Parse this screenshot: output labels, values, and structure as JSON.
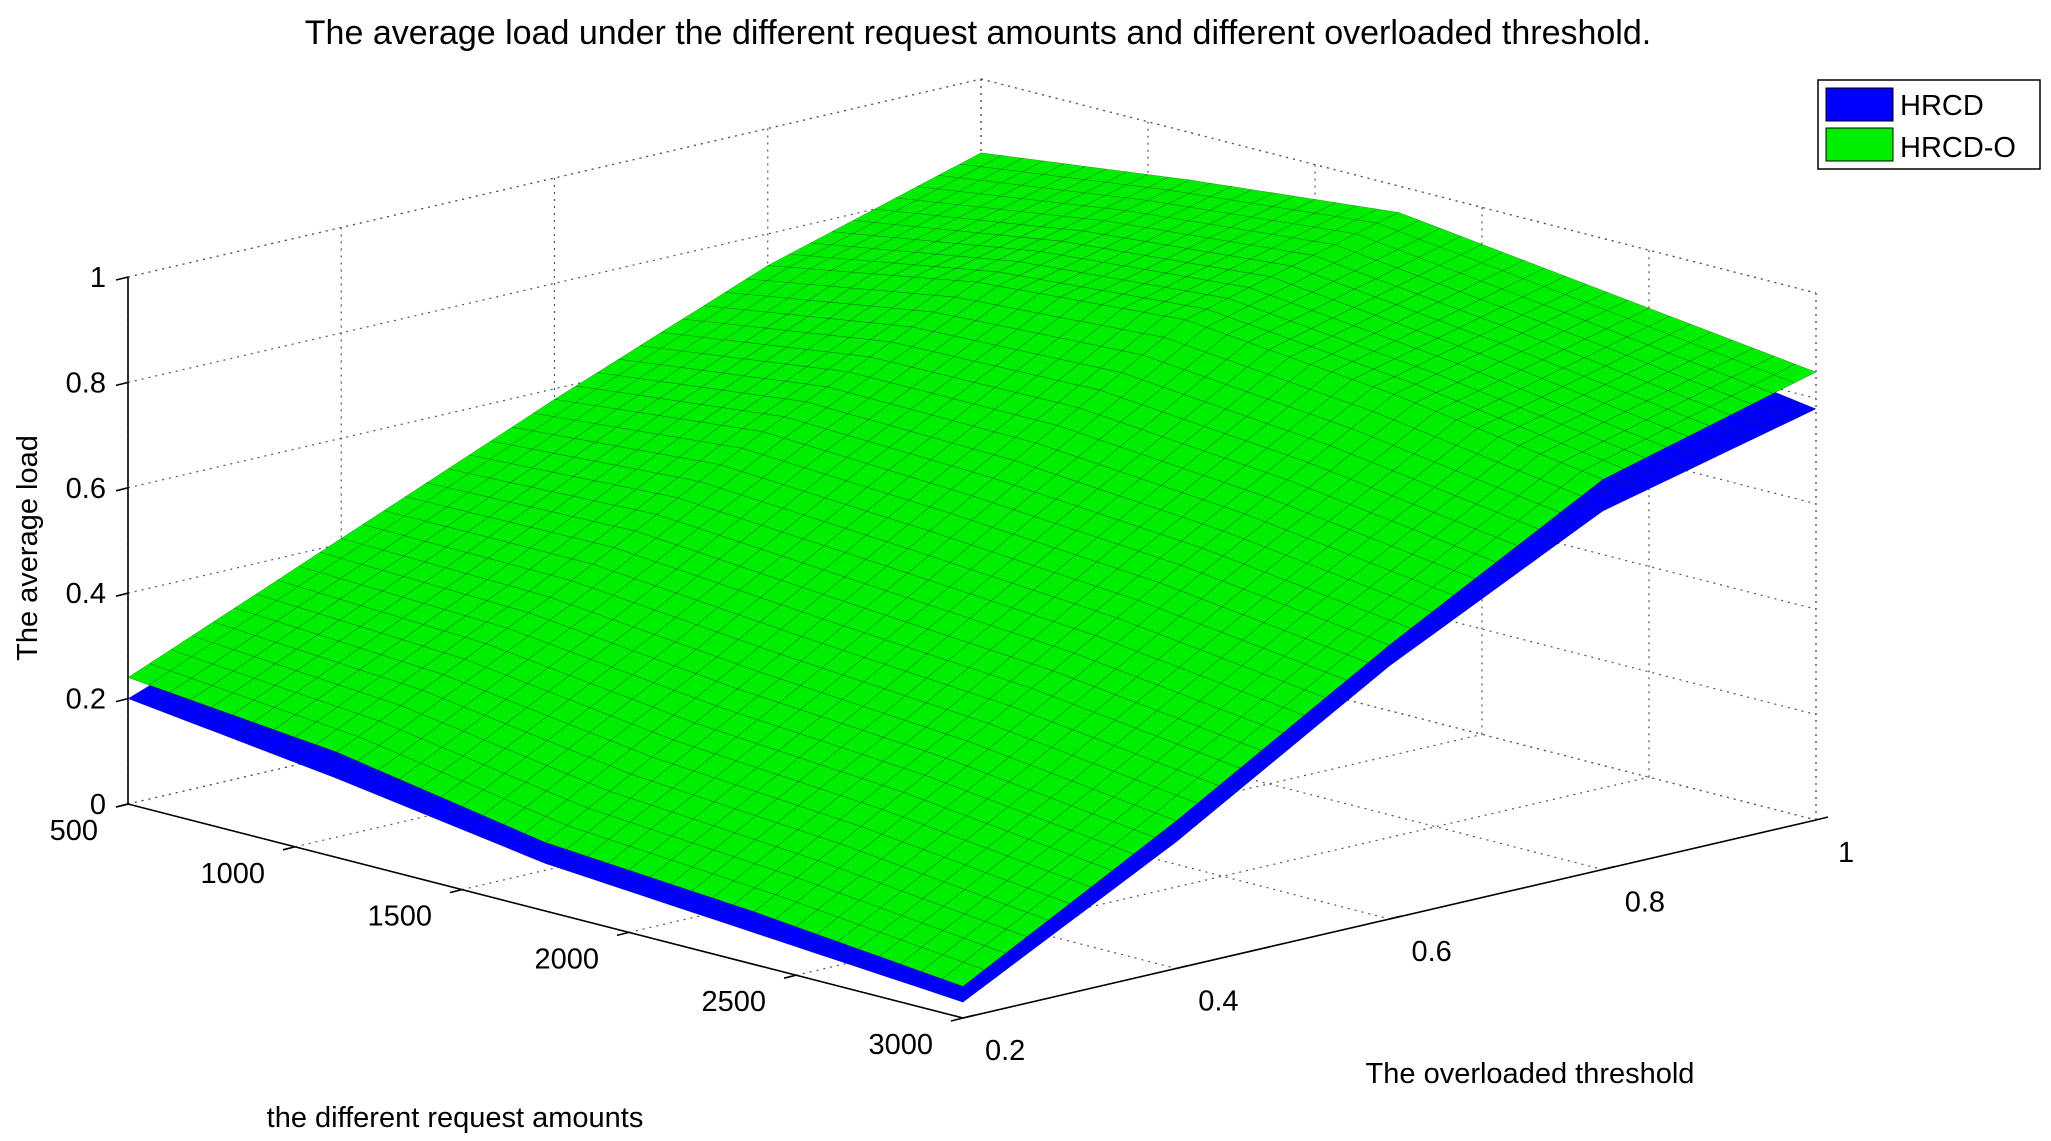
{
  "chart_data": {
    "type": "surface3d",
    "title": "The average load under the different request amounts and different overloaded threshold.",
    "xlabel": "the different request amounts",
    "ylabel": "The overloaded threshold",
    "zlabel": "The average load",
    "xlim": [
      500,
      3000
    ],
    "ylim": [
      0.2,
      1
    ],
    "zlim": [
      0,
      1
    ],
    "x_ticks": [
      500,
      1000,
      1500,
      2000,
      2500,
      3000
    ],
    "x_tick_labels": [
      "500",
      "1000",
      "1500",
      "2000",
      "2500",
      "3000"
    ],
    "y_ticks": [
      0.2,
      0.4,
      0.6,
      0.8,
      1
    ],
    "y_tick_labels": [
      "0.2",
      "0.4",
      "0.6",
      "0.8",
      "1"
    ],
    "z_ticks": [
      0,
      0.2,
      0.4,
      0.6,
      0.8,
      1
    ],
    "z_tick_labels": [
      "0",
      "0.2",
      "0.4",
      "0.6",
      "0.8",
      "1"
    ],
    "grid": true,
    "legend_position": "top-right",
    "x": [
      500,
      1125,
      1750,
      2375,
      3000
    ],
    "y": [
      0.2,
      0.4,
      0.6,
      0.8,
      1.0
    ],
    "series": [
      {
        "name": "HRCD",
        "color": "#0000ff",
        "z": [
          [
            0.2,
            0.35,
            0.5,
            0.64,
            0.74
          ],
          [
            0.15,
            0.34,
            0.55,
            0.72,
            0.79
          ],
          [
            0.09,
            0.3,
            0.54,
            0.76,
            0.86
          ],
          [
            0.06,
            0.28,
            0.52,
            0.74,
            0.84
          ],
          [
            0.03,
            0.24,
            0.48,
            0.68,
            0.78
          ]
        ]
      },
      {
        "name": "HRCD-O",
        "color": "#00ee00",
        "z": [
          [
            0.24,
            0.41,
            0.58,
            0.74,
            0.86
          ],
          [
            0.2,
            0.4,
            0.62,
            0.81,
            0.91
          ],
          [
            0.13,
            0.36,
            0.6,
            0.84,
            0.95
          ],
          [
            0.1,
            0.33,
            0.57,
            0.8,
            0.9
          ],
          [
            0.06,
            0.28,
            0.52,
            0.74,
            0.85
          ]
        ]
      }
    ]
  }
}
